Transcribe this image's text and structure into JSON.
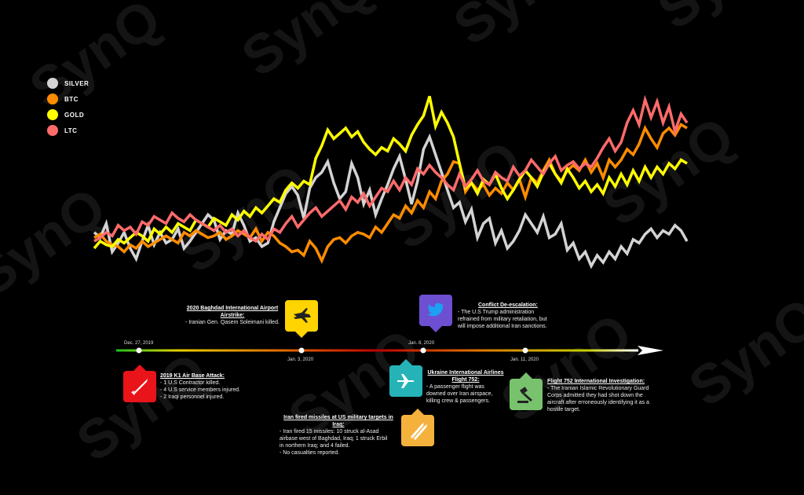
{
  "legend": [
    {
      "label": "SILVER",
      "color": "#d3d3d3"
    },
    {
      "label": "BTC",
      "color": "#ff8c00"
    },
    {
      "label": "GOLD",
      "color": "#ffff00"
    },
    {
      "label": "LTC",
      "color": "#ff6b6b"
    }
  ],
  "watermark": "SynQ",
  "timeline": {
    "dates": [
      "Dec. 27, 2019",
      "Jan. 3, 2020",
      "Jan. 8, 2020",
      "Jan. 11, 2020"
    ]
  },
  "events": {
    "k1": {
      "title": "2019 K1 Air Base Attack:",
      "lines": [
        "- 1 U.S Contractor killed.",
        "- 4 U.S service members injured.",
        "- 2 Iraqi personnel injured."
      ],
      "icon": "missile-icon",
      "color": "#e8141a"
    },
    "baghdad": {
      "title": "2020 Baghdad International Airport Airstrike:",
      "lines": [
        "- Iranian Gen. Qasem Soleimani killed."
      ],
      "icon": "fighter-jet-icon",
      "color": "#ffd400"
    },
    "missiles": {
      "title": "Iran fired missiles at US military targets in Iraq:",
      "lines": [
        "- Iran fired 15 missiles: 10 struck al-Asad",
        "airbase west of Baghdad, Iraq; 1 struck Erbil",
        "in northern Iraq; and 4 failed.",
        "- No casualties reported."
      ],
      "icon": "missiles-icon",
      "color": "#f4b23d"
    },
    "ukraine": {
      "title": "Ukraine International Airlines Flight 752:",
      "lines": [
        "- A passenger flight was",
        "downed over Iran airspace,",
        "killing crew & passengers."
      ],
      "icon": "airplane-icon",
      "color": "#26b3b8"
    },
    "deescalation": {
      "title": "Conflict De-escalation:",
      "lines": [
        "- The U.S Trump administration",
        "refrained from military retaliation, but",
        "will impose additional Iran sanctions."
      ],
      "icon": "twitter-bird-icon",
      "color": "#6d4fd1"
    },
    "investigation": {
      "title": "Flight 752 International Investigation:",
      "lines": [
        "- The Iranian Islamic Revolutionary Guard",
        "Corps admitted they had shot down the",
        "aircraft after erroneously identifying it as a",
        "hostile target."
      ],
      "icon": "gavel-icon",
      "color": "#78c26d"
    }
  },
  "chart_data": {
    "type": "line",
    "title": "",
    "xlabel": "",
    "ylabel": "",
    "ylim": [
      0,
      100
    ],
    "note": "Relative normalized price movements; no numeric axes are printed",
    "series": [
      {
        "name": "SILVER",
        "color": "#d3d3d3",
        "values": [
          33,
          30,
          38,
          22,
          27,
          33,
          24,
          18,
          28,
          37,
          26,
          33,
          27,
          29,
          35,
          24,
          28,
          33,
          38,
          43,
          40,
          29,
          34,
          32,
          44,
          37,
          28,
          30,
          25,
          27,
          39,
          47,
          55,
          59,
          54,
          41,
          58,
          64,
          67,
          73,
          61,
          52,
          56,
          72,
          64,
          49,
          57,
          43,
          52,
          60,
          69,
          76,
          63,
          49,
          62,
          80,
          87,
          77,
          67,
          57,
          47,
          50,
          39,
          46,
          30,
          38,
          41,
          27,
          34,
          24,
          28,
          34,
          43,
          38,
          33,
          42,
          30,
          32,
          38,
          23,
          27,
          18,
          22,
          14,
          20,
          16,
          22,
          18,
          25,
          21,
          29,
          27,
          32,
          35,
          30,
          34,
          32,
          37,
          34,
          28
        ]
      },
      {
        "name": "BTC",
        "color": "#ff8c00",
        "values": [
          30,
          32,
          28,
          26,
          25,
          22,
          26,
          24,
          28,
          25,
          27,
          29,
          31,
          29,
          27,
          33,
          31,
          34,
          32,
          30,
          31,
          33,
          29,
          31,
          34,
          32,
          30,
          35,
          28,
          33,
          31,
          27,
          25,
          22,
          23,
          20,
          28,
          24,
          17,
          25,
          29,
          30,
          27,
          31,
          33,
          32,
          30,
          36,
          33,
          38,
          43,
          41,
          48,
          44,
          51,
          47,
          56,
          52,
          62,
          66,
          73,
          72,
          56,
          61,
          57,
          60,
          54,
          58,
          55,
          61,
          57,
          63,
          53,
          64,
          61,
          68,
          74,
          66,
          62,
          68,
          71,
          68,
          74,
          67,
          72,
          64,
          74,
          70,
          74,
          80,
          77,
          83,
          92,
          86,
          81,
          89,
          92,
          88,
          94,
          92
        ]
      },
      {
        "name": "GOLD",
        "color": "#ffff00",
        "values": [
          24,
          28,
          26,
          25,
          29,
          27,
          30,
          33,
          31,
          28,
          35,
          32,
          36,
          33,
          38,
          36,
          34,
          40,
          38,
          36,
          41,
          39,
          37,
          43,
          40,
          45,
          42,
          47,
          44,
          48,
          52,
          50,
          57,
          61,
          58,
          62,
          60,
          75,
          82,
          91,
          86,
          89,
          92,
          87,
          90,
          84,
          80,
          77,
          81,
          79,
          86,
          83,
          79,
          88,
          94,
          99,
          110,
          93,
          101,
          95,
          87,
          72,
          58,
          61,
          55,
          63,
          60,
          66,
          58,
          52,
          57,
          63,
          68,
          64,
          59,
          67,
          72,
          66,
          61,
          69,
          64,
          58,
          62,
          56,
          60,
          55,
          64,
          59,
          66,
          60,
          68,
          62,
          70,
          64,
          70,
          66,
          72,
          69,
          74,
          72
        ]
      },
      {
        "name": "LTC",
        "color": "#ff6b6b",
        "values": [
          28,
          30,
          33,
          31,
          37,
          34,
          36,
          32,
          39,
          37,
          42,
          40,
          38,
          44,
          41,
          39,
          43,
          40,
          38,
          36,
          34,
          37,
          33,
          35,
          31,
          34,
          30,
          28,
          32,
          29,
          35,
          33,
          38,
          42,
          36,
          40,
          44,
          47,
          42,
          45,
          48,
          51,
          46,
          53,
          50,
          55,
          48,
          53,
          58,
          56,
          62,
          57,
          64,
          60,
          69,
          66,
          71,
          67,
          64,
          60,
          57,
          66,
          59,
          63,
          68,
          62,
          60,
          67,
          64,
          62,
          70,
          65,
          68,
          74,
          70,
          66,
          72,
          76,
          68,
          71,
          73,
          69,
          72,
          70,
          75,
          81,
          86,
          79,
          84,
          95,
          102,
          94,
          108,
          98,
          107,
          95,
          104,
          90,
          100,
          95
        ]
      }
    ]
  }
}
